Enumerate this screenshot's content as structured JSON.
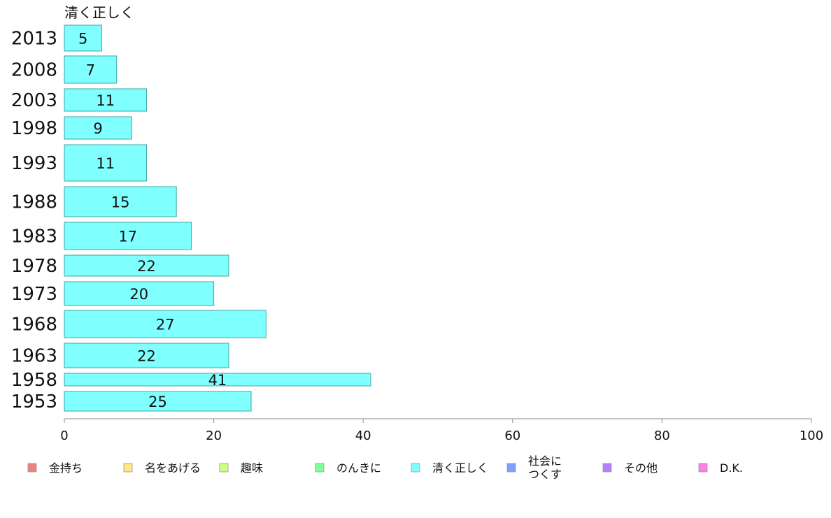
{
  "chart_data": {
    "type": "bar",
    "orientation": "horizontal",
    "title": "清く正しく",
    "categories": [
      "2013",
      "2008",
      "2003",
      "1998",
      "1993",
      "1988",
      "1983",
      "1978",
      "1973",
      "1968",
      "1963",
      "1958",
      "1953"
    ],
    "series": [
      {
        "name": "清く正しく",
        "values": [
          5,
          7,
          11,
          9,
          11,
          15,
          17,
          22,
          20,
          27,
          22,
          41,
          25
        ],
        "color": "#80ffff"
      }
    ],
    "xlim": [
      0,
      100
    ],
    "xticks": [
      0,
      20,
      40,
      60,
      80,
      100
    ],
    "xlabel": "",
    "ylabel": "",
    "grid": false,
    "legend": {
      "position": "bottom",
      "items": [
        {
          "label": "金持ち",
          "color": "#f08080"
        },
        {
          "label": "名をあげる",
          "color": "#ffe680"
        },
        {
          "label": "趣味",
          "color": "#ccff80"
        },
        {
          "label": "のんきに",
          "color": "#80ff99"
        },
        {
          "label": "清く正しく",
          "color": "#80ffff"
        },
        {
          "label": "社会に\nつくす",
          "color": "#809fff"
        },
        {
          "label": "その他",
          "color": "#b380ff"
        },
        {
          "label": "D.K.",
          "color": "#ff80e6"
        }
      ]
    }
  }
}
